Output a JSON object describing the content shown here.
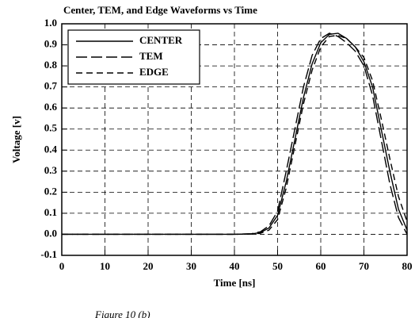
{
  "chart_data": {
    "type": "line",
    "title": "Center, TEM, and Edge Waveforms vs Time",
    "x_label": "Time [ns]",
    "y_label": "Voltage [v]",
    "caption": "Figure 10 (b)",
    "x": [
      0,
      10,
      20,
      30,
      40,
      44,
      46,
      48,
      50,
      52,
      54,
      56,
      58,
      60,
      62,
      64,
      66,
      68,
      70,
      72,
      74,
      76,
      78,
      80
    ],
    "series": [
      {
        "name": "CENTER",
        "color": "#000000",
        "linestyle": "solid",
        "values": [
          0,
          0,
          0,
          0,
          0,
          0.002,
          0.008,
          0.03,
          0.09,
          0.25,
          0.45,
          0.65,
          0.81,
          0.91,
          0.95,
          0.955,
          0.93,
          0.89,
          0.82,
          0.7,
          0.5,
          0.3,
          0.12,
          0.02
        ]
      },
      {
        "name": "TEM",
        "color": "#000000",
        "linestyle": "longdash",
        "values": [
          0,
          0,
          0,
          0,
          0,
          0.003,
          0.012,
          0.04,
          0.11,
          0.3,
          0.5,
          0.7,
          0.85,
          0.93,
          0.955,
          0.94,
          0.91,
          0.87,
          0.8,
          0.66,
          0.45,
          0.24,
          0.08,
          0.0
        ]
      },
      {
        "name": "EDGE",
        "color": "#000000",
        "linestyle": "dashed",
        "values": [
          0,
          0,
          0,
          0,
          0,
          0.001,
          0.005,
          0.02,
          0.07,
          0.22,
          0.42,
          0.62,
          0.78,
          0.89,
          0.94,
          0.945,
          0.93,
          0.89,
          0.84,
          0.73,
          0.55,
          0.36,
          0.18,
          0.06
        ]
      }
    ],
    "xlim": [
      0,
      80
    ],
    "xticks": [
      0,
      10,
      20,
      30,
      40,
      50,
      60,
      70,
      80
    ],
    "ylim": [
      -0.1,
      1.0
    ],
    "yticks": [
      -0.1,
      {
        "value": 0,
        "label": "0.0"
      },
      0.1,
      0.2,
      0.3,
      0.4,
      0.5,
      0.6,
      0.7,
      0.8,
      0.9,
      {
        "value": 1,
        "label": "1.0"
      }
    ],
    "grid": true,
    "legend": "upper left"
  }
}
